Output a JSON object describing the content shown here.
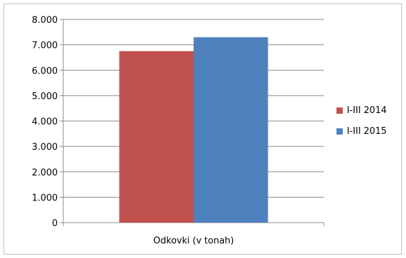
{
  "chart_data": {
    "type": "bar",
    "categories": [
      "Odkovki (v tonah)"
    ],
    "series": [
      {
        "name": "I-III 2014",
        "values": [
          6750
        ],
        "color": "#c0504d"
      },
      {
        "name": "I-III 2015",
        "values": [
          7300
        ],
        "color": "#4f81bd"
      }
    ],
    "yticks": [
      "0",
      "1.000",
      "2.000",
      "3.000",
      "4.000",
      "5.000",
      "6.000",
      "7.000",
      "8.000"
    ],
    "ylim": [
      0,
      8000
    ],
    "grid": true,
    "legend_position": "right"
  }
}
